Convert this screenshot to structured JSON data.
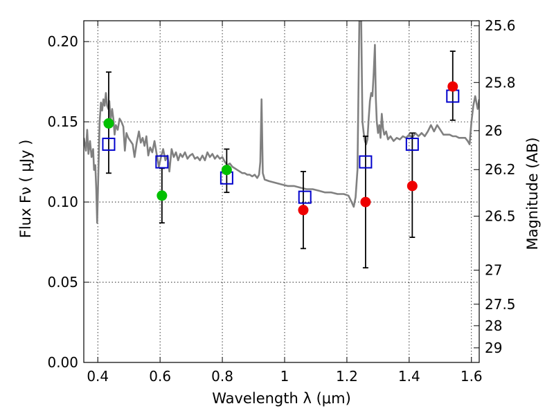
{
  "chart_data": {
    "type": "scatter",
    "xlabel": "Wavelength  λ (μm)",
    "ylabel": "Flux  Fν  ( μJy )",
    "ylabel_right": "Magnitude (AB)",
    "xlim": [
      0.355,
      1.625
    ],
    "ylim": [
      0.0,
      0.213
    ],
    "grid": true,
    "x_ticks": [
      {
        "value": 0.4,
        "label": "0.4"
      },
      {
        "value": 0.6,
        "label": "0.6"
      },
      {
        "value": 0.8,
        "label": "0.8"
      },
      {
        "value": 1.0,
        "label": "1"
      },
      {
        "value": 1.2,
        "label": "1.2"
      },
      {
        "value": 1.4,
        "label": "1.4"
      },
      {
        "value": 1.6,
        "label": "1.6"
      }
    ],
    "y_ticks": [
      {
        "value": 0.0,
        "label": "0.00"
      },
      {
        "value": 0.05,
        "label": "0.05"
      },
      {
        "value": 0.1,
        "label": "0.10"
      },
      {
        "value": 0.15,
        "label": "0.15"
      },
      {
        "value": 0.2,
        "label": "0.20"
      }
    ],
    "right_ticks": [
      {
        "label": "25.6",
        "flux": 0.2099
      },
      {
        "label": "25.8",
        "flux": 0.1745
      },
      {
        "label": "26",
        "flux": 0.1445
      },
      {
        "label": "26.2",
        "flux": 0.1202
      },
      {
        "label": "26.5",
        "flux": 0.0912
      },
      {
        "label": "27",
        "flux": 0.0575
      },
      {
        "label": "27.5",
        "flux": 0.0363
      },
      {
        "label": "28",
        "flux": 0.0229
      },
      {
        "label": "29",
        "flux": 0.0091
      }
    ],
    "series": [
      {
        "marker": "circle",
        "color": "#00c000",
        "points": [
          {
            "x": 0.435,
            "y": 0.149,
            "yerr_low": 0.118,
            "yerr_high": 0.181
          },
          {
            "x": 0.606,
            "y": 0.104,
            "yerr_low": 0.087,
            "yerr_high": 0.121
          },
          {
            "x": 0.814,
            "y": 0.12,
            "yerr_low": 0.106,
            "yerr_high": 0.133
          }
        ]
      },
      {
        "marker": "circle",
        "color": "#ee0000",
        "points": [
          {
            "x": 1.06,
            "y": 0.095,
            "yerr_low": 0.071,
            "yerr_high": 0.119
          },
          {
            "x": 1.26,
            "y": 0.1,
            "yerr_low": 0.059,
            "yerr_high": 0.141
          },
          {
            "x": 1.41,
            "y": 0.11,
            "yerr_low": 0.078,
            "yerr_high": 0.143
          },
          {
            "x": 1.54,
            "y": 0.172,
            "yerr_low": 0.151,
            "yerr_high": 0.194
          }
        ]
      },
      {
        "marker": "open-square",
        "color": "#0000cc",
        "points": [
          {
            "x": 0.435,
            "y": 0.136
          },
          {
            "x": 0.606,
            "y": 0.125
          },
          {
            "x": 0.814,
            "y": 0.115
          },
          {
            "x": 1.065,
            "y": 0.103
          },
          {
            "x": 1.26,
            "y": 0.125
          },
          {
            "x": 1.41,
            "y": 0.136
          },
          {
            "x": 1.54,
            "y": 0.166
          }
        ]
      }
    ],
    "spectrum": {
      "color": "#808080",
      "points": [
        [
          0.355,
          0.14
        ],
        [
          0.362,
          0.132
        ],
        [
          0.366,
          0.145
        ],
        [
          0.37,
          0.13
        ],
        [
          0.375,
          0.138
        ],
        [
          0.38,
          0.128
        ],
        [
          0.385,
          0.133
        ],
        [
          0.388,
          0.12
        ],
        [
          0.392,
          0.123
        ],
        [
          0.395,
          0.108
        ],
        [
          0.398,
          0.087
        ],
        [
          0.402,
          0.119
        ],
        [
          0.406,
          0.15
        ],
        [
          0.41,
          0.162
        ],
        [
          0.414,
          0.157
        ],
        [
          0.418,
          0.164
        ],
        [
          0.422,
          0.16
        ],
        [
          0.426,
          0.168
        ],
        [
          0.43,
          0.16
        ],
        [
          0.434,
          0.158
        ],
        [
          0.437,
          0.163
        ],
        [
          0.441,
          0.151
        ],
        [
          0.446,
          0.158
        ],
        [
          0.45,
          0.152
        ],
        [
          0.454,
          0.142
        ],
        [
          0.458,
          0.148
        ],
        [
          0.464,
          0.145
        ],
        [
          0.47,
          0.152
        ],
        [
          0.476,
          0.15
        ],
        [
          0.482,
          0.147
        ],
        [
          0.487,
          0.132
        ],
        [
          0.492,
          0.143
        ],
        [
          0.498,
          0.14
        ],
        [
          0.505,
          0.138
        ],
        [
          0.512,
          0.136
        ],
        [
          0.518,
          0.128
        ],
        [
          0.525,
          0.137
        ],
        [
          0.532,
          0.144
        ],
        [
          0.538,
          0.137
        ],
        [
          0.544,
          0.14
        ],
        [
          0.55,
          0.135
        ],
        [
          0.556,
          0.141
        ],
        [
          0.562,
          0.129
        ],
        [
          0.568,
          0.134
        ],
        [
          0.575,
          0.131
        ],
        [
          0.582,
          0.138
        ],
        [
          0.589,
          0.13
        ],
        [
          0.596,
          0.122
        ],
        [
          0.603,
          0.128
        ],
        [
          0.61,
          0.133
        ],
        [
          0.617,
          0.126
        ],
        [
          0.624,
          0.129
        ],
        [
          0.63,
          0.119
        ],
        [
          0.637,
          0.133
        ],
        [
          0.644,
          0.128
        ],
        [
          0.651,
          0.131
        ],
        [
          0.658,
          0.126
        ],
        [
          0.665,
          0.13
        ],
        [
          0.672,
          0.128
        ],
        [
          0.68,
          0.131
        ],
        [
          0.688,
          0.127
        ],
        [
          0.696,
          0.129
        ],
        [
          0.704,
          0.13
        ],
        [
          0.712,
          0.127
        ],
        [
          0.72,
          0.128
        ],
        [
          0.728,
          0.126
        ],
        [
          0.736,
          0.129
        ],
        [
          0.744,
          0.126
        ],
        [
          0.752,
          0.131
        ],
        [
          0.76,
          0.128
        ],
        [
          0.768,
          0.13
        ],
        [
          0.776,
          0.127
        ],
        [
          0.784,
          0.129
        ],
        [
          0.792,
          0.127
        ],
        [
          0.8,
          0.128
        ],
        [
          0.808,
          0.125
        ],
        [
          0.816,
          0.123
        ],
        [
          0.824,
          0.124
        ],
        [
          0.832,
          0.122
        ],
        [
          0.84,
          0.121
        ],
        [
          0.848,
          0.12
        ],
        [
          0.856,
          0.119
        ],
        [
          0.864,
          0.118
        ],
        [
          0.872,
          0.118
        ],
        [
          0.88,
          0.117
        ],
        [
          0.888,
          0.117
        ],
        [
          0.896,
          0.116
        ],
        [
          0.904,
          0.117
        ],
        [
          0.912,
          0.115
        ],
        [
          0.918,
          0.117
        ],
        [
          0.922,
          0.125
        ],
        [
          0.926,
          0.164
        ],
        [
          0.93,
          0.118
        ],
        [
          0.936,
          0.114
        ],
        [
          0.95,
          0.113
        ],
        [
          0.97,
          0.112
        ],
        [
          0.99,
          0.111
        ],
        [
          1.01,
          0.11
        ],
        [
          1.03,
          0.11
        ],
        [
          1.05,
          0.109
        ],
        [
          1.07,
          0.108
        ],
        [
          1.09,
          0.108
        ],
        [
          1.11,
          0.107
        ],
        [
          1.13,
          0.106
        ],
        [
          1.15,
          0.106
        ],
        [
          1.17,
          0.105
        ],
        [
          1.19,
          0.105
        ],
        [
          1.205,
          0.104
        ],
        [
          1.215,
          0.1
        ],
        [
          1.222,
          0.097
        ],
        [
          1.228,
          0.103
        ],
        [
          1.234,
          0.12
        ],
        [
          1.24,
          0.213
        ],
        [
          1.246,
          0.213
        ],
        [
          1.25,
          0.15
        ],
        [
          1.254,
          0.143
        ],
        [
          1.258,
          0.138
        ],
        [
          1.262,
          0.136
        ],
        [
          1.266,
          0.139
        ],
        [
          1.27,
          0.152
        ],
        [
          1.274,
          0.163
        ],
        [
          1.278,
          0.168
        ],
        [
          1.282,
          0.166
        ],
        [
          1.286,
          0.18
        ],
        [
          1.29,
          0.198
        ],
        [
          1.293,
          0.165
        ],
        [
          1.296,
          0.15
        ],
        [
          1.3,
          0.143
        ],
        [
          1.304,
          0.148
        ],
        [
          1.308,
          0.14
        ],
        [
          1.312,
          0.155
        ],
        [
          1.316,
          0.146
        ],
        [
          1.32,
          0.142
        ],
        [
          1.326,
          0.144
        ],
        [
          1.332,
          0.139
        ],
        [
          1.34,
          0.141
        ],
        [
          1.35,
          0.138
        ],
        [
          1.36,
          0.14
        ],
        [
          1.37,
          0.139
        ],
        [
          1.38,
          0.141
        ],
        [
          1.39,
          0.14
        ],
        [
          1.4,
          0.142
        ],
        [
          1.41,
          0.14
        ],
        [
          1.42,
          0.143
        ],
        [
          1.43,
          0.141
        ],
        [
          1.44,
          0.143
        ],
        [
          1.45,
          0.141
        ],
        [
          1.46,
          0.144
        ],
        [
          1.47,
          0.148
        ],
        [
          1.48,
          0.144
        ],
        [
          1.49,
          0.148
        ],
        [
          1.5,
          0.145
        ],
        [
          1.51,
          0.142
        ],
        [
          1.52,
          0.142
        ],
        [
          1.53,
          0.142
        ],
        [
          1.54,
          0.141
        ],
        [
          1.55,
          0.141
        ],
        [
          1.56,
          0.14
        ],
        [
          1.57,
          0.14
        ],
        [
          1.58,
          0.14
        ],
        [
          1.588,
          0.138
        ],
        [
          1.594,
          0.136
        ],
        [
          1.6,
          0.15
        ],
        [
          1.606,
          0.16
        ],
        [
          1.612,
          0.166
        ],
        [
          1.616,
          0.162
        ],
        [
          1.62,
          0.158
        ],
        [
          1.625,
          0.164
        ]
      ]
    }
  }
}
